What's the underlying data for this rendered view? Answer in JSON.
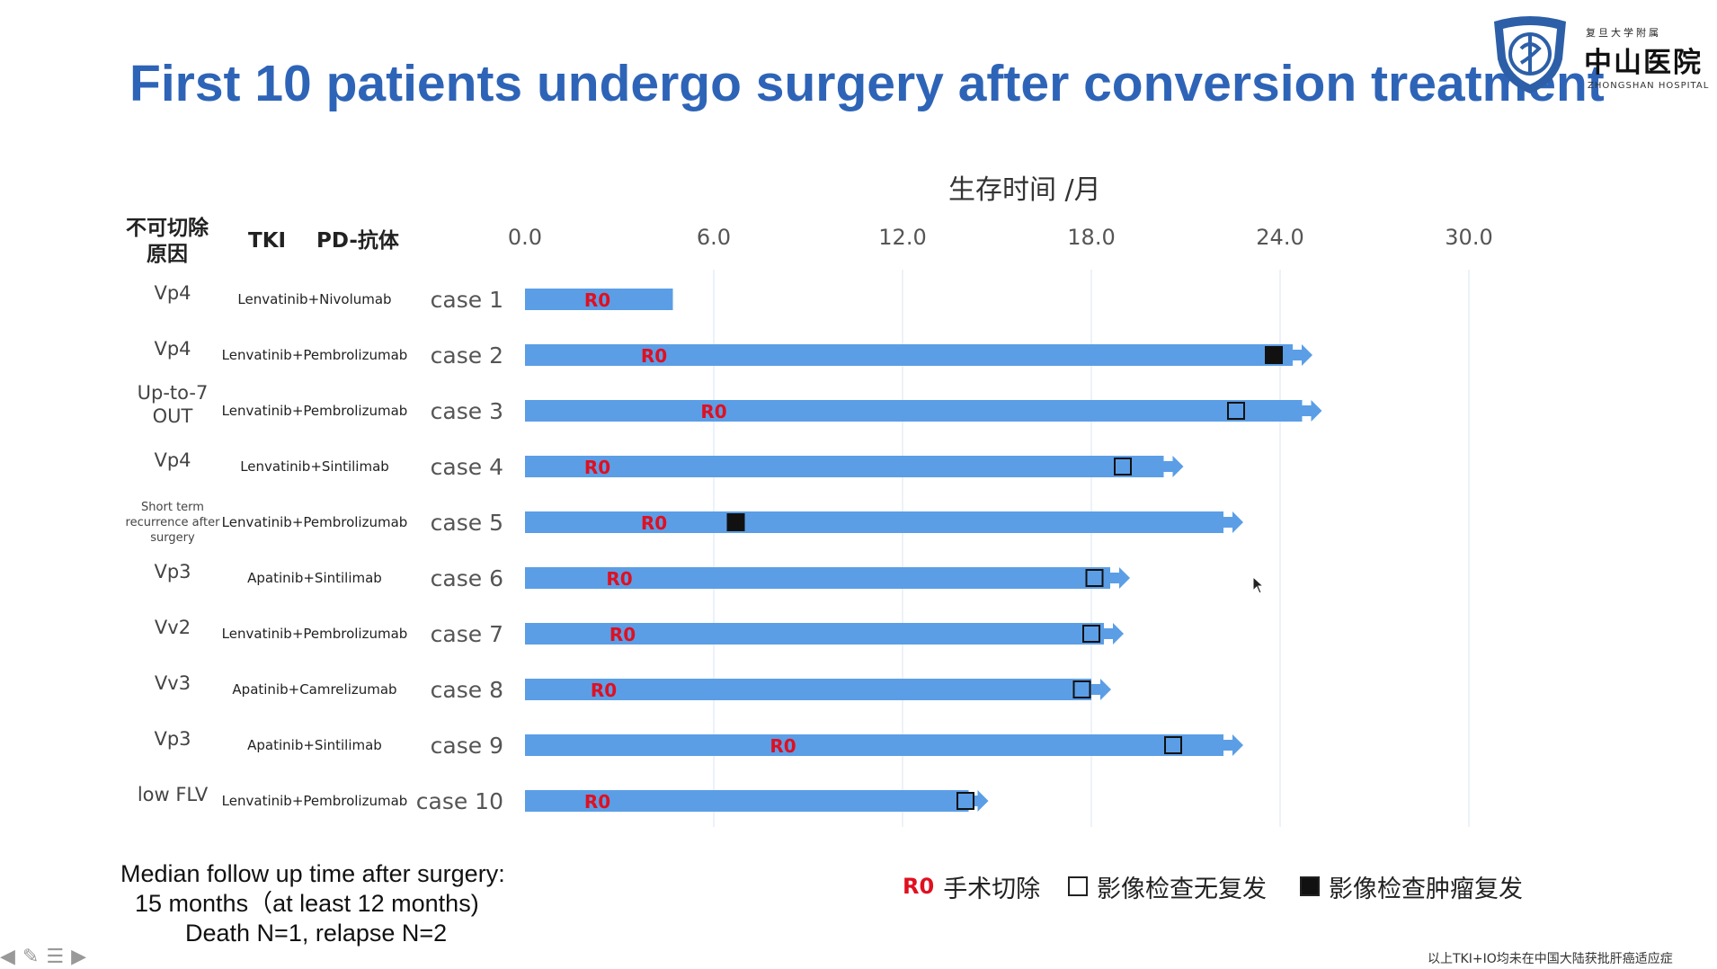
{
  "slide": {
    "title": "First 10 patients undergo surgery after conversion treatment"
  },
  "logo": {
    "small_text": "复旦大学附属",
    "name": "中山医院",
    "english": "ZHONGSHAN HOSPITAL"
  },
  "headers": {
    "reason_line1": "不可切除",
    "reason_line2": "原因",
    "tki": "TKI",
    "pd": "PD-抗体"
  },
  "chart_data": {
    "type": "bar",
    "orientation": "horizontal",
    "title": "生存时间 /月",
    "x_ticks": [
      "0.0",
      "6.0",
      "12.0",
      "18.0",
      "24.0",
      "30.0"
    ],
    "xlim": [
      0,
      30
    ],
    "grid": true,
    "colors": {
      "bar": "#5b9ee6",
      "arrow": "#5b9ee6",
      "r0": "#e01020",
      "marker": "#111111"
    },
    "cases": [
      {
        "label": "case 1",
        "reason": [
          "Vp4"
        ],
        "regimen": "Lenvatinib+Nivolumab",
        "months": 4.7,
        "ongoing": false,
        "r0": 2.3,
        "event": null,
        "event_at": null
      },
      {
        "label": "case 2",
        "reason": [
          "Vp4"
        ],
        "regimen": "Lenvatinib+Pembrolizumab",
        "months": 24.4,
        "ongoing": true,
        "r0": 4.1,
        "event": "recurrence",
        "event_at": 23.8
      },
      {
        "label": "case 3",
        "reason": [
          "Up-to-7",
          "OUT"
        ],
        "regimen": "Lenvatinib+Pembrolizumab",
        "months": 24.7,
        "ongoing": true,
        "r0": 6.0,
        "event": "no_recurrence",
        "event_at": 22.6
      },
      {
        "label": "case 4",
        "reason": [
          "Vp4"
        ],
        "regimen": "Lenvatinib+Sintilimab",
        "months": 20.3,
        "ongoing": true,
        "r0": 2.3,
        "event": "no_recurrence",
        "event_at": 19.0
      },
      {
        "label": "case 5",
        "reason": [
          "Short term",
          "recurrence after",
          "surgery"
        ],
        "regimen": "Lenvatinib+Pembrolizumab",
        "months": 22.2,
        "ongoing": true,
        "r0": 4.1,
        "event": "recurrence",
        "event_at": 6.7
      },
      {
        "label": "case 6",
        "reason": [
          "Vp3"
        ],
        "regimen": "Apatinib+Sintilimab",
        "months": 18.6,
        "ongoing": true,
        "r0": 3.0,
        "event": "no_recurrence",
        "event_at": 18.1
      },
      {
        "label": "case 7",
        "reason": [
          "Vv2"
        ],
        "regimen": "Lenvatinib+Pembrolizumab",
        "months": 18.4,
        "ongoing": true,
        "r0": 3.1,
        "event": "no_recurrence",
        "event_at": 18.0
      },
      {
        "label": "case 8",
        "reason": [
          "Vv3"
        ],
        "regimen": "Apatinib+Camrelizumab",
        "months": 18.0,
        "ongoing": true,
        "r0": 2.5,
        "event": "no_recurrence",
        "event_at": 17.7
      },
      {
        "label": "case 9",
        "reason": [
          "Vp3"
        ],
        "regimen": "Apatinib+Sintilimab",
        "months": 22.2,
        "ongoing": true,
        "r0": 8.2,
        "event": "no_recurrence",
        "event_at": 20.6
      },
      {
        "label": "case 10",
        "reason": [
          "low FLV"
        ],
        "regimen": "Lenvatinib+Pembrolizumab",
        "months": 14.1,
        "ongoing": true,
        "r0": 2.3,
        "event": "no_recurrence",
        "event_at": 14.0
      }
    ],
    "r0_label": "R0"
  },
  "notes": {
    "line1": "Median follow up time after surgery:",
    "line2": "15 months（at least 12 months)",
    "line3": "Death N=1, relapse N=2"
  },
  "legend": {
    "r0_mark": "R0",
    "r0_text": "手术切除",
    "open_text": "影像检查无复发",
    "filled_text": "影像检查肿瘤复发"
  },
  "footnote": "以上TKI+IO均未在中国大陆获批肝癌适应症"
}
